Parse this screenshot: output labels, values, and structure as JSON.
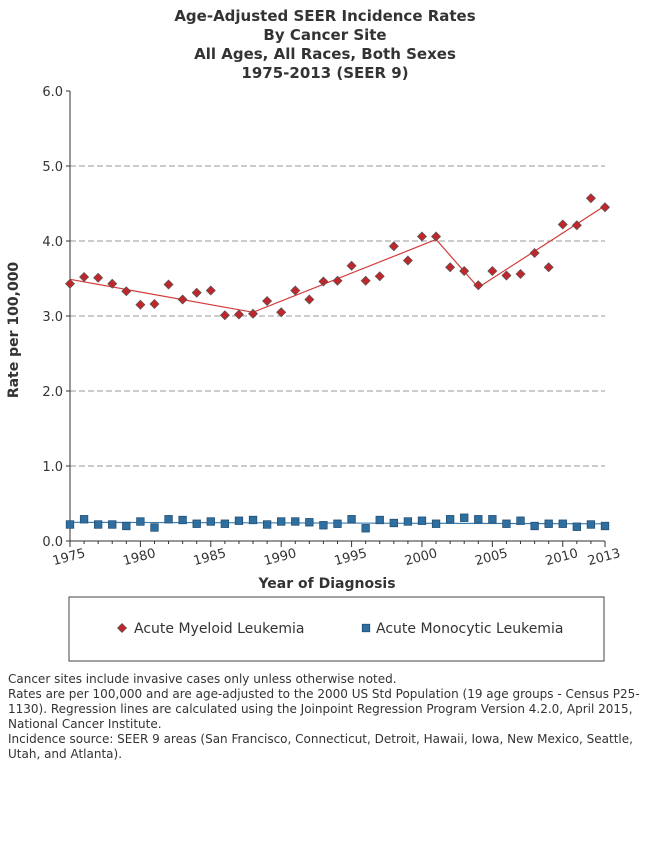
{
  "title_lines": [
    "Age-Adjusted SEER Incidence Rates",
    "By Cancer Site",
    "All Ages, All Races, Both Sexes",
    "1975-2013  (SEER 9)"
  ],
  "notes": [
    "Cancer sites include invasive cases only unless otherwise noted.",
    "Rates are per 100,000 and are age-adjusted to the 2000 US Std Population (19 age groups - Census P25-1130). Regression lines are calculated using the Joinpoint Regression Program Version 4.2.0, April 2015, National Cancer Institute.",
    "Incidence source: SEER 9 areas (San Francisco, Connecticut, Detroit, Hawaii, Iowa, New Mexico, Seattle, Utah, and Atlanta)."
  ],
  "colors": {
    "aml": "#c0272d",
    "aml_line": "#d23a3a",
    "amol": "#2e6fa0",
    "amol_line": "#3b7db0",
    "grid": "#999999",
    "text": "#333333"
  },
  "chart_data": {
    "type": "scatter",
    "xlabel": "Year of Diagnosis",
    "ylabel": "Rate per 100,000",
    "xlim": [
      1975,
      2013
    ],
    "ylim": [
      0,
      6
    ],
    "x_ticks": [
      "1975",
      "1980",
      "1985",
      "1990",
      "1995",
      "2000",
      "2005",
      "2010",
      "2013"
    ],
    "y_ticks": [
      "0.0",
      "1.0",
      "2.0",
      "3.0",
      "4.0",
      "5.0",
      "6.0"
    ],
    "grid": "horizontal dashed",
    "legend": "bottom",
    "x": [
      1975,
      1976,
      1977,
      1978,
      1979,
      1980,
      1981,
      1982,
      1983,
      1984,
      1985,
      1986,
      1987,
      1988,
      1989,
      1990,
      1991,
      1992,
      1993,
      1994,
      1995,
      1996,
      1997,
      1998,
      1999,
      2000,
      2001,
      2002,
      2003,
      2004,
      2005,
      2006,
      2007,
      2008,
      2009,
      2010,
      2011,
      2012,
      2013
    ],
    "series": [
      {
        "name": "Acute Myeloid Leukemia",
        "marker": "diamond",
        "values": [
          3.43,
          3.52,
          3.51,
          3.43,
          3.33,
          3.15,
          3.16,
          3.42,
          3.22,
          3.31,
          3.34,
          3.01,
          3.02,
          3.03,
          3.2,
          3.05,
          3.34,
          3.22,
          3.46,
          3.47,
          3.67,
          3.47,
          3.53,
          3.93,
          3.74,
          4.06,
          4.06,
          3.65,
          3.6,
          3.41,
          3.6,
          3.54,
          3.56,
          3.84,
          3.65,
          4.22,
          4.21,
          4.57,
          4.45
        ],
        "regression": {
          "x": [
            1975,
            1988,
            2001,
            2004,
            2013
          ],
          "y": [
            3.49,
            3.05,
            4.02,
            3.38,
            4.47
          ]
        }
      },
      {
        "name": "Acute Monocytic Leukemia",
        "marker": "square",
        "values": [
          0.22,
          0.29,
          0.22,
          0.22,
          0.2,
          0.26,
          0.18,
          0.29,
          0.28,
          0.23,
          0.26,
          0.23,
          0.27,
          0.28,
          0.22,
          0.26,
          0.26,
          0.25,
          0.21,
          0.23,
          0.29,
          0.17,
          0.28,
          0.24,
          0.26,
          0.27,
          0.23,
          0.29,
          0.31,
          0.29,
          0.29,
          0.23,
          0.27,
          0.2,
          0.23,
          0.23,
          0.19,
          0.22,
          0.2
        ],
        "regression": {
          "x": [
            1975,
            2013
          ],
          "y": [
            0.25,
            0.23
          ]
        }
      }
    ]
  }
}
